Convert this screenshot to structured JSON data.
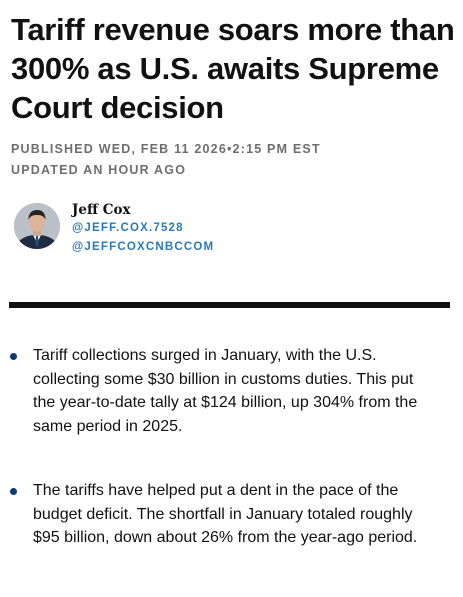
{
  "article": {
    "headline": "Tariff revenue soars more than 300% as U.S. awaits Supreme Court decision",
    "published": "PUBLISHED WED, FEB 11 2026•2:15 PM EST",
    "updated": "UPDATED AN HOUR AGO"
  },
  "author": {
    "name": "Jeff Cox",
    "handle_primary": "@JEFF.COX.7528",
    "handle_secondary": "@JEFFCOXCNBCCOM"
  },
  "key_points": [
    {
      "text": "Tariff collections surged in January, with the U.S. collecting some $30 billion in customs duties. This put the year-to-date tally at $124 billion, up 304% from the same period in 2025."
    },
    {
      "text": "The tariffs have helped put a dent in the pace of the budget deficit. The shortfall in January totaled roughly $95 billion, down about 26% from the year-ago period."
    }
  ],
  "colors": {
    "accent_link": "#2a7ab5",
    "bullet": "#0b3b75",
    "divider": "#111111"
  },
  "icons": {
    "avatar": "author-portrait"
  }
}
